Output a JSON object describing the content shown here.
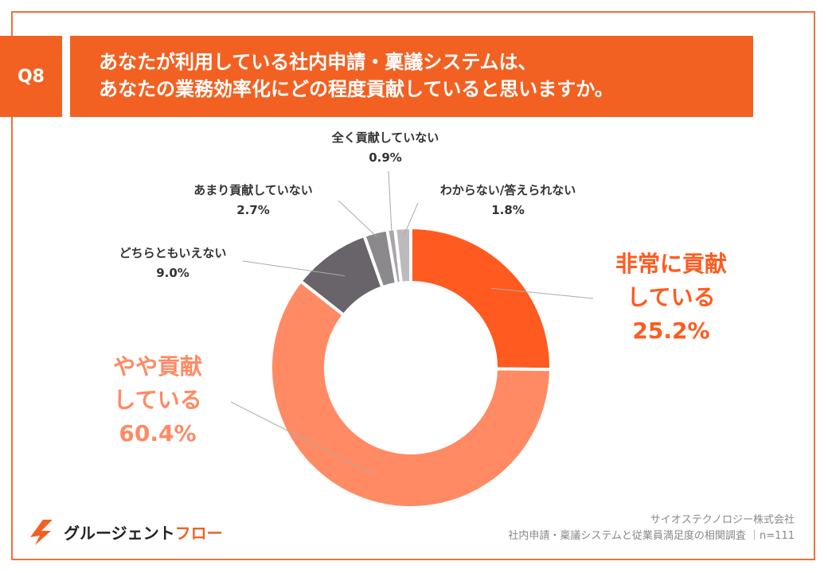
{
  "question": {
    "number": "Q8",
    "title_line1": "あなたが利用している社内申請・稟議システムは、",
    "title_line2": "あなたの業務効率化にどの程度貢献していると思いますか。"
  },
  "chart_data": {
    "type": "pie",
    "donut": true,
    "slices": [
      {
        "label_lines": [
          "非常に貢献",
          "している"
        ],
        "value": 25.2,
        "value_text": "25.2%",
        "color": "#ff5a1f"
      },
      {
        "label_lines": [
          "やや貢献",
          "している"
        ],
        "value": 60.4,
        "value_text": "60.4%",
        "color": "#ff8a63"
      },
      {
        "label_lines": [
          "どちらともいえない"
        ],
        "value": 9.0,
        "value_text": "9.0%",
        "color": "#69646a"
      },
      {
        "label_lines": [
          "あまり貢献していない"
        ],
        "value": 2.7,
        "value_text": "2.7%",
        "color": "#8c898d"
      },
      {
        "label_lines": [
          "全く貢献していない"
        ],
        "value": 0.9,
        "value_text": "0.9%",
        "color": "#a8a6a9"
      },
      {
        "label_lines": [
          "わからない/答えられない"
        ],
        "value": 1.8,
        "value_text": "1.8%",
        "color": "#bcbabd"
      }
    ]
  },
  "footer": {
    "company": "サイオステクノロジー株式会社",
    "survey": "社内申請・稟議システムと従業員満足度の相関調査 ｜n=111"
  },
  "logo": {
    "text_main": "グルージェント",
    "text_accent": "フロー",
    "color": "#f26122"
  }
}
